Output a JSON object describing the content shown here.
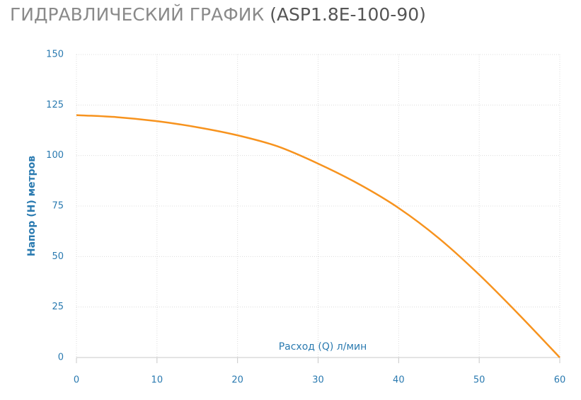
{
  "chart_data": {
    "type": "line",
    "title": "ГИДРАВЛИЧЕСКИЙ ГРАФИК",
    "subtitle": "(ASP1.8E-100-90)",
    "x_label": "Расход (Q) л/мин",
    "y_label": "Напор (H) метров",
    "x": [
      0,
      5,
      10,
      15,
      20,
      25,
      30,
      35,
      40,
      45,
      50,
      55,
      60
    ],
    "series": [
      {
        "name": "ASP1.8E-100-90",
        "color": "#f7931e",
        "values": [
          120,
          119,
          117,
          114,
          110,
          104.5,
          96,
          86,
          74,
          59,
          41,
          21,
          0
        ]
      }
    ],
    "xlim": [
      0,
      60
    ],
    "xticks": [
      0,
      10,
      20,
      30,
      40,
      50,
      60
    ],
    "ylim": [
      0,
      150
    ],
    "yticks": [
      0,
      25,
      50,
      75,
      100,
      125,
      150
    ],
    "grid": true
  }
}
